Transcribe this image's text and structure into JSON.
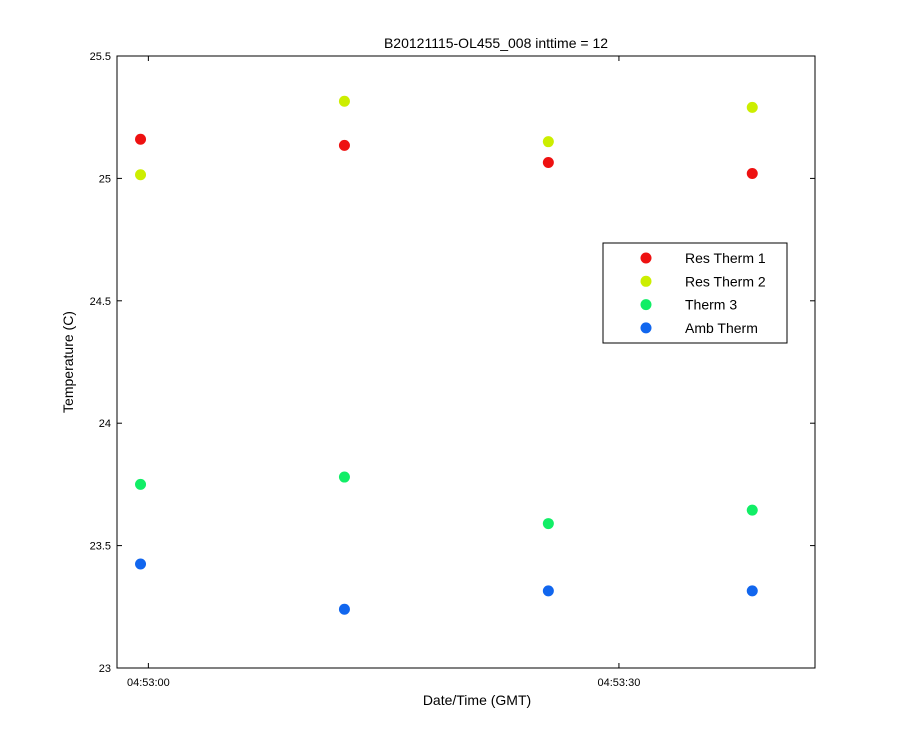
{
  "chart_data": {
    "type": "scatter",
    "title": "B20121115-OL455_008 inttime = 12",
    "xlabel": "Date/Time (GMT)",
    "ylabel": "Temperature (C)",
    "xlim_seconds_after_04_53_00": [
      -2,
      42.5
    ],
    "ylim": [
      23,
      25.5
    ],
    "x_ticks": [
      {
        "value": 0,
        "label": "04:53:00"
      },
      {
        "value": 30,
        "label": "04:53:30"
      }
    ],
    "y_ticks": [
      {
        "value": 23,
        "label": "23"
      },
      {
        "value": 23.5,
        "label": "23.5"
      },
      {
        "value": 24,
        "label": "24"
      },
      {
        "value": 24.5,
        "label": "24.5"
      },
      {
        "value": 25,
        "label": "25"
      },
      {
        "value": 25.5,
        "label": "25.5"
      }
    ],
    "x": [
      -0.5,
      12.5,
      25.5,
      38.5
    ],
    "legend_position": "right",
    "grid": false,
    "series": [
      {
        "name": "Res Therm 1",
        "color": "#ee1111",
        "values": [
          25.16,
          25.135,
          25.065,
          25.02
        ]
      },
      {
        "name": "Res Therm 2",
        "color": "#ccee00",
        "values": [
          25.015,
          25.315,
          25.15,
          25.29
        ]
      },
      {
        "name": "Therm 3",
        "color": "#11ee66",
        "values": [
          23.75,
          23.78,
          23.59,
          23.645
        ]
      },
      {
        "name": "Amb Therm",
        "color": "#1166ee",
        "values": [
          23.425,
          23.24,
          23.315,
          23.315
        ]
      }
    ]
  }
}
